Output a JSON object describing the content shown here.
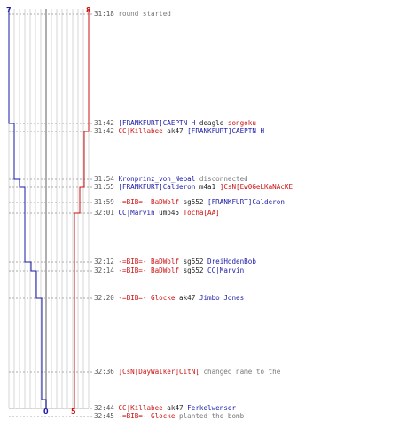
{
  "scoreboard": {
    "start_left": "7",
    "start_right": "8",
    "end_left": "0",
    "end_right": "5",
    "colors": {
      "blue": "#1a1aa6",
      "red": "#cc1111",
      "text": "#222222",
      "gray": "#777777"
    }
  },
  "events": [
    {
      "time": "31:18",
      "segments": [
        {
          "text": "round started",
          "color": "gray"
        }
      ]
    },
    {
      "time": "31:42",
      "segments": [
        {
          "text": "[FRANKFURT]CAEPTN H",
          "color": "blue"
        },
        {
          "text": " deagle ",
          "color": "black"
        },
        {
          "text": "songoku",
          "color": "red"
        }
      ]
    },
    {
      "time": "31:42",
      "segments": [
        {
          "text": "CC|Killabee",
          "color": "red"
        },
        {
          "text": " ak47 ",
          "color": "black"
        },
        {
          "text": "[FRANKFURT]CAEPTN H",
          "color": "blue"
        }
      ]
    },
    {
      "time": "31:54",
      "segments": [
        {
          "text": "Kronprinz_von_Nepal",
          "color": "blue"
        },
        {
          "text": " disconnected",
          "color": "gray"
        }
      ]
    },
    {
      "time": "31:55",
      "segments": [
        {
          "text": "[FRANKFURT]Calderon",
          "color": "blue"
        },
        {
          "text": " m4a1 ",
          "color": "black"
        },
        {
          "text": "]CsN[Ew0GeLKaNAcKE",
          "color": "red"
        }
      ]
    },
    {
      "time": "31:59",
      "segments": [
        {
          "text": "-=BIB=- BaDWolf",
          "color": "red"
        },
        {
          "text": " sg552 ",
          "color": "black"
        },
        {
          "text": "[FRANKFURT]Calderon",
          "color": "blue"
        }
      ]
    },
    {
      "time": "32:01",
      "segments": [
        {
          "text": "CC|Marvin",
          "color": "blue"
        },
        {
          "text": " ump45 ",
          "color": "black"
        },
        {
          "text": "Tocha[AA]",
          "color": "red"
        }
      ]
    },
    {
      "time": "32:12",
      "segments": [
        {
          "text": "-=BIB=- BaDWolf",
          "color": "red"
        },
        {
          "text": " sg552 ",
          "color": "black"
        },
        {
          "text": "DreiHodenBob",
          "color": "blue"
        }
      ]
    },
    {
      "time": "32:14",
      "segments": [
        {
          "text": "-=BIB=- BaDWolf",
          "color": "red"
        },
        {
          "text": " sg552 ",
          "color": "black"
        },
        {
          "text": "CC|Marvin",
          "color": "blue"
        }
      ]
    },
    {
      "time": "32:20",
      "segments": [
        {
          "text": "-=BIB=- Glocke",
          "color": "red"
        },
        {
          "text": " ak47 ",
          "color": "black"
        },
        {
          "text": "Jimbo Jones",
          "color": "blue"
        }
      ]
    },
    {
      "time": "32:36",
      "segments": [
        {
          "text": "]CsN[DayWalker]CitN[",
          "color": "red"
        },
        {
          "text": " changed name to the",
          "color": "gray"
        }
      ]
    },
    {
      "time": "32:44",
      "segments": [
        {
          "text": "CC|Killabee",
          "color": "red"
        },
        {
          "text": " ak47 ",
          "color": "black"
        },
        {
          "text": "Ferkelwenser",
          "color": "blue"
        }
      ]
    },
    {
      "time": "32:45",
      "segments": [
        {
          "text": "-=BIB=- Glocke",
          "color": "red"
        },
        {
          "text": " planted the bomb",
          "color": "gray"
        }
      ]
    }
  ]
}
